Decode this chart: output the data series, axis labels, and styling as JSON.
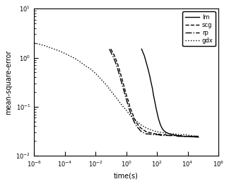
{
  "title": "",
  "xlabel": "time(s)",
  "ylabel": "mean-square-error",
  "xlim": [
    1e-06,
    1000000.0
  ],
  "ylim": [
    0.01,
    10.0
  ],
  "legend_labels": [
    "lm",
    "scg",
    "rp",
    "gdx"
  ],
  "legend_styles": [
    {
      "linestyle": "-",
      "color": "black",
      "linewidth": 1.0
    },
    {
      "linestyle": "--",
      "color": "black",
      "linewidth": 1.0
    },
    {
      "linestyle": "-.",
      "color": "black",
      "linewidth": 1.0
    },
    {
      "linestyle": ":",
      "color": "black",
      "linewidth": 1.0
    }
  ],
  "background_color": "#ffffff",
  "lm": {
    "t": [
      10,
      12,
      15,
      18,
      22,
      27,
      33,
      40,
      50,
      60,
      75,
      90,
      110,
      130,
      160,
      200,
      250,
      300,
      400,
      500,
      700,
      1000,
      2000,
      5000,
      10000,
      50000
    ],
    "mse": [
      1.5,
      1.3,
      1.1,
      0.9,
      0.72,
      0.57,
      0.44,
      0.33,
      0.24,
      0.17,
      0.12,
      0.09,
      0.068,
      0.055,
      0.045,
      0.038,
      0.034,
      0.032,
      0.03,
      0.029,
      0.028,
      0.027,
      0.026,
      0.025,
      0.025,
      0.024
    ]
  },
  "scg": {
    "t": [
      0.1,
      0.12,
      0.15,
      0.18,
      0.22,
      0.27,
      0.33,
      0.4,
      0.5,
      0.6,
      0.75,
      0.9,
      1.1,
      1.4,
      1.7,
      2.1,
      2.6,
      3.2,
      4.0,
      5.0,
      6.5,
      8.0,
      10.0,
      15.0,
      20.0,
      30.0,
      50.0,
      80.0,
      120.0,
      200.0,
      350.0,
      600.0,
      1200.0,
      2500.0,
      6000.0,
      15000.0,
      50000.0
    ],
    "mse": [
      1.5,
      1.35,
      1.2,
      1.05,
      0.9,
      0.75,
      0.62,
      0.5,
      0.4,
      0.32,
      0.25,
      0.2,
      0.16,
      0.13,
      0.1,
      0.085,
      0.072,
      0.06,
      0.052,
      0.046,
      0.041,
      0.038,
      0.036,
      0.033,
      0.031,
      0.03,
      0.029,
      0.028,
      0.028,
      0.027,
      0.027,
      0.026,
      0.026,
      0.026,
      0.025,
      0.025,
      0.025
    ]
  },
  "rp": {
    "t": [
      0.08,
      0.1,
      0.12,
      0.15,
      0.18,
      0.22,
      0.27,
      0.33,
      0.4,
      0.5,
      0.6,
      0.75,
      0.9,
      1.1,
      1.4,
      1.7,
      2.1,
      2.6,
      3.2,
      4.0,
      5.0,
      6.5,
      8.0,
      10.0,
      15.0,
      20.0,
      30.0,
      50.0,
      80.0,
      120.0,
      200.0,
      350.0,
      600.0,
      1200.0,
      2500.0,
      6000.0,
      15000.0,
      50000.0
    ],
    "mse": [
      1.5,
      1.3,
      1.15,
      1.0,
      0.87,
      0.73,
      0.6,
      0.49,
      0.39,
      0.31,
      0.25,
      0.2,
      0.16,
      0.13,
      0.1,
      0.083,
      0.07,
      0.059,
      0.05,
      0.044,
      0.039,
      0.036,
      0.033,
      0.031,
      0.029,
      0.028,
      0.028,
      0.027,
      0.027,
      0.027,
      0.026,
      0.026,
      0.026,
      0.026,
      0.025,
      0.025,
      0.025,
      0.025
    ]
  },
  "gdx": {
    "t": [
      1e-06,
      2e-06,
      5e-06,
      1e-05,
      2e-05,
      5e-05,
      0.0001,
      0.0002,
      0.0005,
      0.001,
      0.002,
      0.005,
      0.01,
      0.02,
      0.05,
      0.1,
      0.2,
      0.5,
      1.0,
      2.0,
      5.0,
      10.0,
      20.0,
      50.0,
      100.0,
      200.0,
      400.0,
      800.0,
      1500.0,
      3000.0,
      7000.0,
      15000.0,
      50000.0
    ],
    "mse": [
      2.0,
      1.9,
      1.75,
      1.62,
      1.5,
      1.35,
      1.22,
      1.1,
      0.95,
      0.82,
      0.7,
      0.58,
      0.48,
      0.38,
      0.28,
      0.21,
      0.16,
      0.11,
      0.085,
      0.065,
      0.05,
      0.042,
      0.037,
      0.033,
      0.031,
      0.03,
      0.029,
      0.028,
      0.028,
      0.027,
      0.027,
      0.026,
      0.025
    ]
  }
}
